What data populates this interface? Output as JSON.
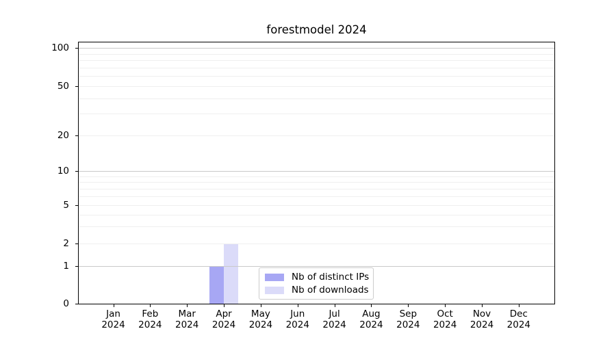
{
  "chart_data": {
    "type": "bar",
    "title": "forestmodel 2024",
    "x": [
      {
        "month": "Jan",
        "year": "2024"
      },
      {
        "month": "Feb",
        "year": "2024"
      },
      {
        "month": "Mar",
        "year": "2024"
      },
      {
        "month": "Apr",
        "year": "2024"
      },
      {
        "month": "May",
        "year": "2024"
      },
      {
        "month": "Jun",
        "year": "2024"
      },
      {
        "month": "Jul",
        "year": "2024"
      },
      {
        "month": "Aug",
        "year": "2024"
      },
      {
        "month": "Sep",
        "year": "2024"
      },
      {
        "month": "Oct",
        "year": "2024"
      },
      {
        "month": "Nov",
        "year": "2024"
      },
      {
        "month": "Dec",
        "year": "2024"
      }
    ],
    "series": [
      {
        "name": "Nb of distinct IPs",
        "color": "#a7a7f4",
        "values": [
          0,
          0,
          0,
          1,
          0,
          0,
          0,
          0,
          0,
          0,
          0,
          0
        ]
      },
      {
        "name": "Nb of downloads",
        "color": "#dbdbf9",
        "values": [
          0,
          0,
          0,
          2,
          0,
          0,
          0,
          0,
          0,
          0,
          0,
          0
        ]
      }
    ],
    "y_axis": {
      "scale": "symlog",
      "range": [
        0,
        100
      ],
      "tick_values": [
        0,
        1,
        2,
        5,
        10,
        20,
        50,
        100
      ],
      "major_gridline_values": [
        1,
        10,
        100
      ],
      "minor_gridline_values": [
        2,
        3,
        4,
        5,
        6,
        7,
        8,
        9,
        20,
        30,
        40,
        50,
        60,
        70,
        80,
        90
      ]
    },
    "legend": {
      "position": "lower center",
      "entries": [
        "Nb of distinct IPs",
        "Nb of downloads"
      ]
    },
    "grid": true,
    "background_color": "#ffffff",
    "gridline_major_color": "#c9c9c9",
    "gridline_minor_color": "#efefef"
  }
}
